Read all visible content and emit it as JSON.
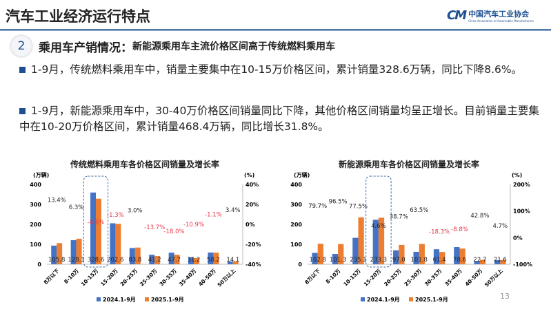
{
  "header": {
    "title": "汽车工业经济运行特点",
    "logo_cn": "中国汽车工业协会",
    "logo_en": "China Association of Automobile Manufacturers",
    "logo_mark": "CM"
  },
  "section": {
    "number": "2",
    "title": "乘用车产销情况：",
    "subtitle": "新能源乘用车主流价格区间高于传统燃料乘用车"
  },
  "bullets": [
    "1-9月，传统燃料乘用车中，销量主要集中在10-15万价格区间，累计销量328.6万辆，同比下降8.6%。",
    "1-9月，新能源乘用车中，30-40万价格区间销量同比下降，其他价格区间销量均呈正增长。目前销量主要集中在10-20万价格区间，累计销量468.4万辆，同比增长31.8%。"
  ],
  "page_number": "13",
  "colors": {
    "series_2024": "#4472c4",
    "series_2025": "#ed7d31",
    "negative": "#e8384a",
    "accent": "#1d4f91"
  },
  "chart_data": [
    {
      "type": "bar",
      "title": "传统燃料乘用车各价格区间销量及增长率",
      "ylabel": "(万辆)",
      "y2label": "(%)",
      "ylim": [
        0,
        400
      ],
      "yticks": [
        0,
        100,
        200,
        300,
        400
      ],
      "y2lim": [
        -40,
        40
      ],
      "y2ticks": [
        "-40%",
        "-20%",
        "0%",
        "20%",
        "40%"
      ],
      "categories": [
        "8万以下",
        "8-10万",
        "10-15万",
        "15-20万",
        "20-25万",
        "25-30万",
        "30-35万",
        "35-40万",
        "40-50万",
        "50万以上"
      ],
      "series": [
        {
          "name": "2024.1-9月",
          "values": [
            93.3,
            120.5,
            359.5,
            205.3,
            81.4,
            47.7,
            58.2,
            35.0,
            58.8,
            13.6
          ]
        },
        {
          "name": "2025.1-9月",
          "values": [
            105.8,
            128.1,
            328.6,
            202.6,
            83.8,
            41.2,
            47.7,
            31.2,
            58.2,
            14.1
          ]
        }
      ],
      "value_labels": [
        "105.8",
        "128.1",
        "328.6",
        "202.6",
        "83.8",
        "41.2",
        "47.7",
        "31.2",
        "58.2",
        "14.1"
      ],
      "growth": [
        13.4,
        6.3,
        -8.6,
        -1.3,
        3.0,
        -13.7,
        -18.0,
        -10.9,
        -1.1,
        3.4
      ],
      "growth_labels": [
        "13.4%",
        "6.3%",
        "-8.6%",
        "-1.3%",
        "3.0%",
        "-13.7%",
        "-18.0%",
        "-10.9%",
        "-1.1%",
        "3.4%"
      ],
      "highlight": "10-15万",
      "legend": "bottom"
    },
    {
      "type": "bar",
      "title": "新能源乘用车各价格区间销量及增长率",
      "ylabel": "(万辆)",
      "y2label": "(%)",
      "ylim": [
        0,
        400
      ],
      "yticks": [
        0,
        100,
        200,
        300,
        400
      ],
      "y2lim": [
        -100,
        200
      ],
      "y2ticks": [
        "-100%",
        "0%",
        "100%",
        "200%"
      ],
      "categories": [
        "8万以下",
        "8-10万",
        "10-15万",
        "15-20万",
        "20-25万",
        "25-30万",
        "30-35万",
        "35-40万",
        "40-50万",
        "50万以上"
      ],
      "series": [
        {
          "name": "2024.1-9月",
          "values": [
            57.2,
            51.6,
            132.5,
            223.0,
            69.9,
            62.3,
            75.2,
            86.2,
            15.9,
            20.6
          ]
        },
        {
          "name": "2025.1-9月",
          "values": [
            102.8,
            101.3,
            235.1,
            233.3,
            97.0,
            101.8,
            61.4,
            78.6,
            22.7,
            21.6
          ]
        }
      ],
      "value_labels": [
        "102.8",
        "101.3",
        "235.1",
        "233.3",
        "97.0",
        "101.8",
        "61.4",
        "78.6",
        "22.7",
        "21.6"
      ],
      "growth": [
        79.7,
        96.5,
        77.5,
        4.6,
        38.7,
        63.5,
        -18.3,
        -8.8,
        42.8,
        4.7
      ],
      "growth_labels": [
        "79.7%",
        "96.5%",
        "77.5%",
        "4.6%",
        "38.7%",
        "63.5%",
        "-18.3%",
        "-8.8%",
        "42.8%",
        "4.7%"
      ],
      "highlight": "15-20万",
      "legend": "bottom"
    }
  ]
}
